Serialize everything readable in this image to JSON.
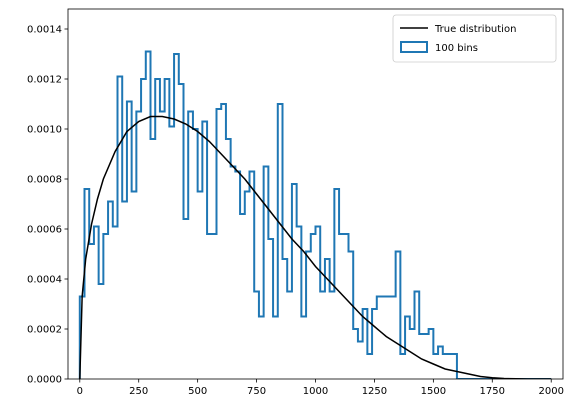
{
  "chart_data": {
    "type": "histogram",
    "xlim": [
      -50,
      2050
    ],
    "ylim": [
      0,
      0.00148
    ],
    "x_ticks": [
      0,
      250,
      500,
      750,
      1000,
      1250,
      1500,
      1750,
      2000
    ],
    "x_tick_labels": [
      "0",
      "250",
      "500",
      "750",
      "1000",
      "1250",
      "1500",
      "1750",
      "2000"
    ],
    "y_ticks": [
      0,
      0.0002,
      0.0004,
      0.0006,
      0.0008,
      0.001,
      0.0012,
      0.0014
    ],
    "y_tick_labels": [
      "0.0000",
      "0.0002",
      "0.0004",
      "0.0006",
      "0.0008",
      "0.0010",
      "0.0012",
      "0.0014"
    ],
    "grid": false,
    "legend_position": "top-right",
    "series": [
      {
        "name": "True distribution",
        "kind": "line",
        "color": "#000000",
        "x": [
          0,
          10,
          25,
          50,
          75,
          100,
          150,
          200,
          250,
          300,
          350,
          400,
          450,
          500,
          550,
          600,
          650,
          700,
          750,
          800,
          850,
          900,
          950,
          1000,
          1050,
          1100,
          1150,
          1200,
          1250,
          1300,
          1350,
          1400,
          1450,
          1500,
          1550,
          1600,
          1650,
          1700,
          1750,
          1800,
          1850,
          1900,
          1950,
          2000
        ],
        "y": [
          0,
          0.00033,
          0.00048,
          0.00062,
          0.00072,
          0.0008,
          0.00091,
          0.00099,
          0.00103,
          0.00105,
          0.00105,
          0.00104,
          0.00102,
          0.00099,
          0.00095,
          0.0009,
          0.00085,
          0.0008,
          0.00074,
          0.00068,
          0.00062,
          0.00056,
          0.00051,
          0.00045,
          0.0004,
          0.00035,
          0.0003,
          0.00025,
          0.00021,
          0.00017,
          0.00014,
          0.00011,
          8e-05,
          6e-05,
          4e-05,
          3e-05,
          2e-05,
          1e-05,
          5e-06,
          2e-06,
          1e-06,
          0,
          0,
          0
        ]
      },
      {
        "name": "100 bins",
        "kind": "step-histogram",
        "color": "#1f77b4",
        "bin_start": 0,
        "bin_width": 20,
        "values": [
          0.00033,
          0.00076,
          0.00054,
          0.00061,
          0.00038,
          0.00058,
          0.00071,
          0.00061,
          0.00121,
          0.00071,
          0.00111,
          0.00075,
          0.00107,
          0.0012,
          0.00131,
          0.00096,
          0.0012,
          0.00107,
          0.0012,
          0.00101,
          0.0013,
          0.00118,
          0.00064,
          0.00107,
          0.001,
          0.00075,
          0.00103,
          0.00058,
          0.00058,
          0.00108,
          0.0011,
          0.00096,
          0.00085,
          0.00083,
          0.00066,
          0.00075,
          0.00083,
          0.00035,
          0.00025,
          0.00085,
          0.00056,
          0.00025,
          0.0011,
          0.00048,
          0.00035,
          0.00078,
          0.00061,
          0.00025,
          0.00051,
          0.00058,
          0.00061,
          0.00035,
          0.00048,
          0.00035,
          0.00076,
          0.00058,
          0.00058,
          0.00051,
          0.0002,
          0.00015,
          0.00028,
          0.0001,
          0.00028,
          0.00033,
          0.00033,
          0.00033,
          0.00033,
          0.00051,
          0.0001,
          0.00025,
          0.0002,
          0.00035,
          0.00018,
          0.00018,
          0.0002,
          0.0001,
          0.00013,
          0.0001,
          0.0001,
          0.0001,
          0,
          0,
          0,
          0,
          0,
          0,
          0,
          0,
          0,
          0,
          0,
          0,
          0,
          0,
          0,
          0,
          0,
          0,
          0,
          0
        ]
      }
    ]
  }
}
